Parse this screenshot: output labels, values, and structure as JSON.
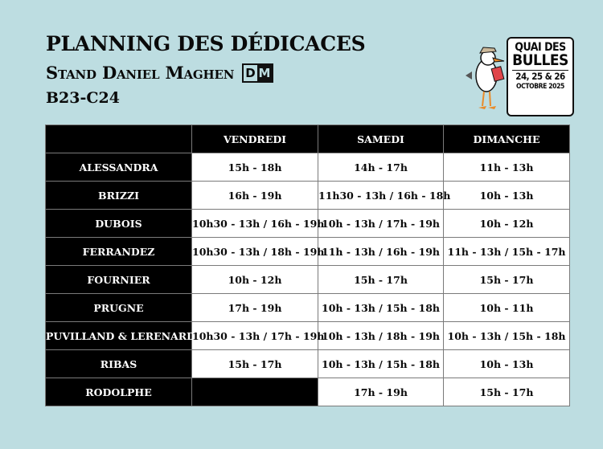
{
  "header": {
    "title": "PLANNING DES DÉDICACES",
    "subtitle": "Stand Daniel Maghen",
    "stand": "B23-C24",
    "dm_logo": "DM"
  },
  "event_logo": {
    "line1": "QUAI DES",
    "line2": "BULLES",
    "dates": "24, 25 & 26",
    "month": "OCTOBRE 2025",
    "mascot": "seagull-reading-icon"
  },
  "table": {
    "columns": [
      "",
      "VENDREDI",
      "SAMEDI",
      "DIMANCHE"
    ],
    "rows": [
      {
        "name": "ALESSANDRA",
        "slots": [
          "15h - 18h",
          "14h - 17h",
          "11h - 13h"
        ]
      },
      {
        "name": "BRIZZI",
        "slots": [
          "16h - 19h",
          "11h30 - 13h / 16h - 18h",
          "10h - 13h"
        ]
      },
      {
        "name": "DUBOIS",
        "slots": [
          "10h30 - 13h / 16h - 19h",
          "10h - 13h / 17h - 19h",
          "10h - 12h"
        ]
      },
      {
        "name": "FERRANDEZ",
        "slots": [
          "10h30 - 13h / 18h - 19h",
          "11h - 13h / 16h - 19h",
          "11h - 13h / 15h - 17h"
        ]
      },
      {
        "name": "FOURNIER",
        "slots": [
          "10h - 12h",
          "15h - 17h",
          "15h - 17h"
        ]
      },
      {
        "name": "PRUGNE",
        "slots": [
          "17h - 19h",
          "10h - 13h / 15h - 18h",
          "10h - 11h"
        ]
      },
      {
        "name": "PUVILLAND & LERENARD",
        "slots": [
          "10h30 - 13h / 17h - 19h",
          "10h - 13h / 18h - 19h",
          "10h - 13h / 15h - 18h"
        ]
      },
      {
        "name": "RIBAS",
        "slots": [
          "15h - 17h",
          "10h - 13h / 15h - 18h",
          "10h - 13h"
        ]
      },
      {
        "name": "RODOLPHE",
        "slots": [
          null,
          "17h - 19h",
          "15h - 17h"
        ]
      }
    ]
  }
}
